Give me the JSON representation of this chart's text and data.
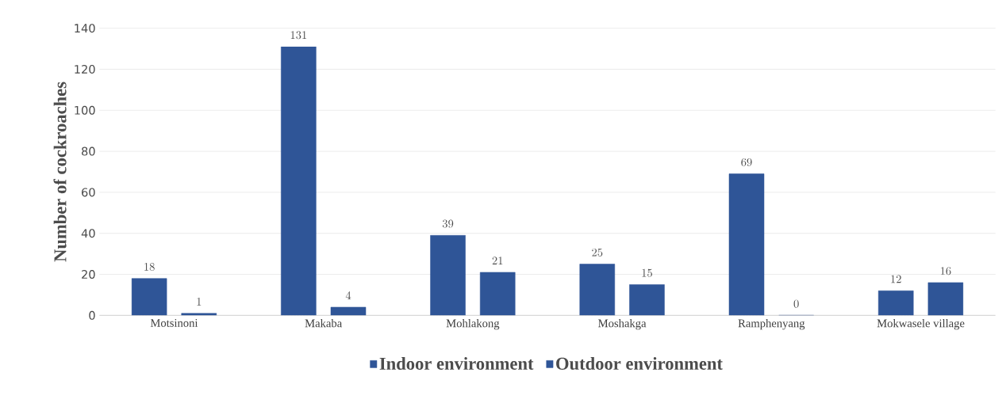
{
  "chart_data": {
    "type": "bar",
    "ylabel": "Number of cockroaches",
    "categories": [
      "Motsinoni",
      "Makaba",
      "Mohlakong",
      "Moshakga",
      "Ramphenyang",
      "Mokwasele village"
    ],
    "series": [
      {
        "name": "Indoor environment",
        "color": "#2f5597",
        "values": [
          18,
          131,
          39,
          25,
          69,
          12
        ]
      },
      {
        "name": "Outdoor environment",
        "color": "#2f5597",
        "values": [
          1,
          4,
          21,
          15,
          0,
          16
        ]
      }
    ],
    "ylim": [
      0,
      140
    ],
    "yticks": [
      0,
      20,
      40,
      60,
      80,
      100,
      120,
      140
    ],
    "grid": "y",
    "legend": "bottom",
    "data_labels": true
  }
}
